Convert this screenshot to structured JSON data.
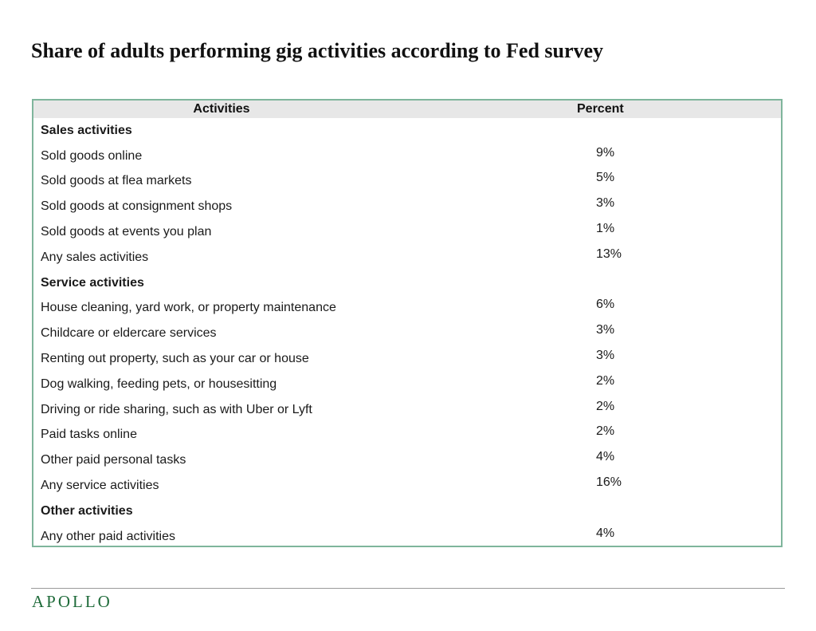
{
  "title": "Share of adults performing gig activities according to Fed survey",
  "table": {
    "headers": {
      "activities": "Activities",
      "percent": "Percent"
    },
    "rows": [
      {
        "label": "Sales activities",
        "value": "",
        "section": true
      },
      {
        "label": "Sold goods online",
        "value": "9%",
        "section": false
      },
      {
        "label": "Sold goods at flea markets",
        "value": "5%",
        "section": false
      },
      {
        "label": "Sold goods at consignment shops",
        "value": "3%",
        "section": false
      },
      {
        "label": "Sold goods at events you plan",
        "value": "1%",
        "section": false
      },
      {
        "label": "Any sales activities",
        "value": "13%",
        "section": false
      },
      {
        "label": "Service activities",
        "value": "",
        "section": true
      },
      {
        "label": "House cleaning, yard work, or property maintenance",
        "value": "6%",
        "section": false
      },
      {
        "label": "Childcare or eldercare services",
        "value": "3%",
        "section": false
      },
      {
        "label": "Renting out property, such as your car or house",
        "value": "3%",
        "section": false
      },
      {
        "label": "Dog walking, feeding pets, or housesitting",
        "value": "2%",
        "section": false
      },
      {
        "label": "Driving or ride sharing, such as with Uber or Lyft",
        "value": "2%",
        "section": false
      },
      {
        "label": "Paid tasks online",
        "value": "2%",
        "section": false
      },
      {
        "label": "Other paid personal tasks",
        "value": "4%",
        "section": false
      },
      {
        "label": "Any service activities",
        "value": "16%",
        "section": false
      },
      {
        "label": "Other activities",
        "value": "",
        "section": true
      },
      {
        "label": "Any other paid activities",
        "value": "4%",
        "section": false
      }
    ]
  },
  "footer": {
    "logo_text": "APOLLO"
  },
  "colors": {
    "table_border": "#7fb59c",
    "header_background": "#e7e7e7",
    "logo": "#1f6b3a"
  }
}
